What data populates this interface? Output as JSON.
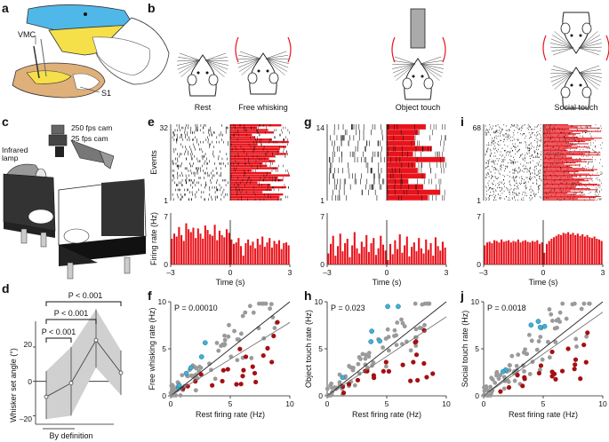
{
  "panels": {
    "a": {
      "letter": "a",
      "labels": [
        "VMC",
        "S1"
      ]
    },
    "b": {
      "letter": "b",
      "conditions": [
        "Rest",
        "Free whisking",
        "Object touch",
        "Social touch"
      ]
    },
    "c": {
      "letter": "c",
      "labels": [
        "250 fps cam",
        "25 fps cam",
        "Infrared\nlamp"
      ],
      "infrared_lines": [
        "Infrared",
        "lamp"
      ]
    },
    "d": {
      "letter": "d",
      "ylabel": "Whisker set angle (°)",
      "xlabel": "By definition",
      "pvalues": [
        "P < 0.001",
        "P < 0.001",
        "P < 0.001"
      ],
      "yticks": [
        "20",
        "0",
        "–20"
      ]
    },
    "e": {
      "letter": "e"
    },
    "g": {
      "letter": "g"
    },
    "i": {
      "letter": "i"
    },
    "f": {
      "letter": "f"
    },
    "h": {
      "letter": "h"
    },
    "j": {
      "letter": "j"
    }
  },
  "raster_ylabel": "Events",
  "psth_ylabel": "Firing rate (Hz)",
  "time_xlabel": "Time (s)",
  "colors": {
    "red": "#e8141c",
    "blue": "#3fb0d8",
    "dark_red": "#a50f12",
    "gray": "#9a9a9a",
    "yellow": "#f5e04a",
    "cyan_brain": "#4fb8e8",
    "tan": "#e0b07a"
  },
  "chart_data": [
    {
      "panel": "e",
      "type": "raster",
      "title": "",
      "y_top": "32",
      "y_bottom": "1",
      "events": 32,
      "xlim": [
        -3,
        3
      ]
    },
    {
      "panel": "e",
      "type": "bar",
      "ylim": [
        0,
        7
      ],
      "yticks": [
        "7",
        "0"
      ],
      "xticks": [
        "–3",
        "0",
        "3"
      ],
      "xlim": [
        -3,
        3
      ],
      "values": [
        3.5,
        4.2,
        3.8,
        5.1,
        4.0,
        3.2,
        5.6,
        4.8,
        4.4,
        5.0,
        3.6,
        4.9,
        4.2,
        3.5,
        5.3,
        4.7,
        4.1,
        3.9,
        5.4,
        3.3,
        4.6,
        4.0,
        3.7,
        4.8,
        4.3,
        3.4,
        2.8,
        3.0,
        3.6,
        2.5,
        1.2,
        2.9,
        3.4,
        2.6,
        3.1,
        2.2,
        3.5,
        2.7,
        3.8,
        2.4,
        3.0,
        3.6,
        2.3,
        3.2,
        2.8,
        3.3,
        2.1,
        2.9,
        3.0,
        2.6
      ]
    },
    {
      "panel": "g",
      "type": "raster",
      "y_top": "14",
      "y_bottom": "1",
      "events": 14,
      "xlim": [
        -3,
        3
      ]
    },
    {
      "panel": "g",
      "type": "bar",
      "ylim": [
        0,
        7
      ],
      "yticks": [
        "7",
        "0"
      ],
      "xticks": [
        "–3",
        "0",
        "3"
      ],
      "xlim": [
        -3,
        3
      ],
      "values": [
        1.5,
        2.8,
        3.9,
        1.2,
        2.5,
        4.2,
        1.8,
        2.9,
        3.5,
        1.0,
        2.6,
        4.4,
        2.2,
        1.5,
        3.1,
        2.4,
        4.0,
        1.7,
        2.9,
        3.6,
        1.3,
        2.2,
        3.9,
        2.7,
        1.9,
        0.6,
        2.8,
        1.4,
        3.3,
        2.1,
        4.1,
        1.6,
        2.6,
        3.8,
        1.1,
        2.4,
        3.0,
        1.8,
        3.6,
        2.2,
        1.5,
        3.4,
        2.0,
        2.9,
        1.2,
        3.7,
        2.5,
        1.9,
        3.1,
        2.3
      ]
    },
    {
      "panel": "i",
      "type": "raster",
      "y_top": "68",
      "y_bottom": "1",
      "events": 68,
      "xlim": [
        -3,
        3
      ]
    },
    {
      "panel": "i",
      "type": "bar",
      "ylim": [
        0,
        7
      ],
      "yticks": [
        "7",
        "0"
      ],
      "xticks": [
        "–3",
        "0",
        "3"
      ],
      "xlim": [
        -3,
        3
      ],
      "values": [
        2.6,
        3.0,
        3.1,
        2.9,
        3.3,
        3.2,
        3.0,
        3.4,
        3.1,
        3.2,
        3.3,
        3.0,
        3.2,
        3.1,
        3.4,
        3.0,
        3.2,
        3.3,
        3.1,
        3.0,
        3.2,
        3.1,
        3.3,
        2.8,
        3.0,
        1.6,
        2.8,
        3.2,
        3.5,
        3.7,
        3.9,
        4.1,
        4.0,
        4.3,
        4.2,
        4.4,
        4.1,
        4.3,
        4.0,
        4.2,
        3.9,
        4.1,
        3.8,
        4.0,
        3.7,
        3.6,
        3.8,
        3.5,
        3.4,
        3.2
      ]
    },
    {
      "panel": "d",
      "type": "line",
      "ylim": [
        -25,
        35
      ],
      "x": [
        1,
        2,
        3,
        4
      ],
      "values": [
        -9,
        -1,
        24,
        5
      ],
      "upper": [
        6,
        20,
        42,
        18
      ],
      "lower": [
        -22,
        -20,
        8,
        -8
      ]
    },
    {
      "panel": "f",
      "type": "scatter",
      "xlabel": "Rest firing rate (Hz)",
      "ylabel": "Free whisking rate (Hz)",
      "pvalue": "P = 0.00010",
      "xlim": [
        0,
        10
      ],
      "ylim": [
        0,
        10
      ],
      "xticks": [
        "0",
        "5",
        "10"
      ],
      "yticks": [
        "0",
        "5",
        "10"
      ],
      "fits": [
        {
          "x": [
            0,
            10
          ],
          "y": [
            0,
            10
          ]
        },
        {
          "x": [
            0,
            10
          ],
          "y": [
            0,
            7.8
          ]
        }
      ]
    },
    {
      "panel": "h",
      "type": "scatter",
      "xlabel": "Rest firing rate (Hz)",
      "ylabel": "Object touch rate (Hz)",
      "pvalue": "P = 0.023",
      "xlim": [
        0,
        10
      ],
      "ylim": [
        0,
        10
      ],
      "xticks": [
        "0",
        "5",
        "10"
      ],
      "yticks": [
        "0",
        "5",
        "10"
      ],
      "fits": [
        {
          "x": [
            0,
            10
          ],
          "y": [
            0,
            10
          ]
        },
        {
          "x": [
            0,
            10
          ],
          "y": [
            0,
            8.4
          ]
        }
      ]
    },
    {
      "panel": "j",
      "type": "scatter",
      "xlabel": "Rest firing rate (Hz)",
      "ylabel": "Social touch rate (Hz)",
      "pvalue": "P = 0.0018",
      "xlim": [
        0,
        10
      ],
      "ylim": [
        0,
        10
      ],
      "xticks": [
        "0",
        "5",
        "10"
      ],
      "yticks": [
        "0",
        "5",
        "10"
      ],
      "fits": [
        {
          "x": [
            0,
            10
          ],
          "y": [
            0,
            10
          ]
        },
        {
          "x": [
            0,
            10
          ],
          "y": [
            0,
            8.9
          ]
        }
      ]
    }
  ]
}
